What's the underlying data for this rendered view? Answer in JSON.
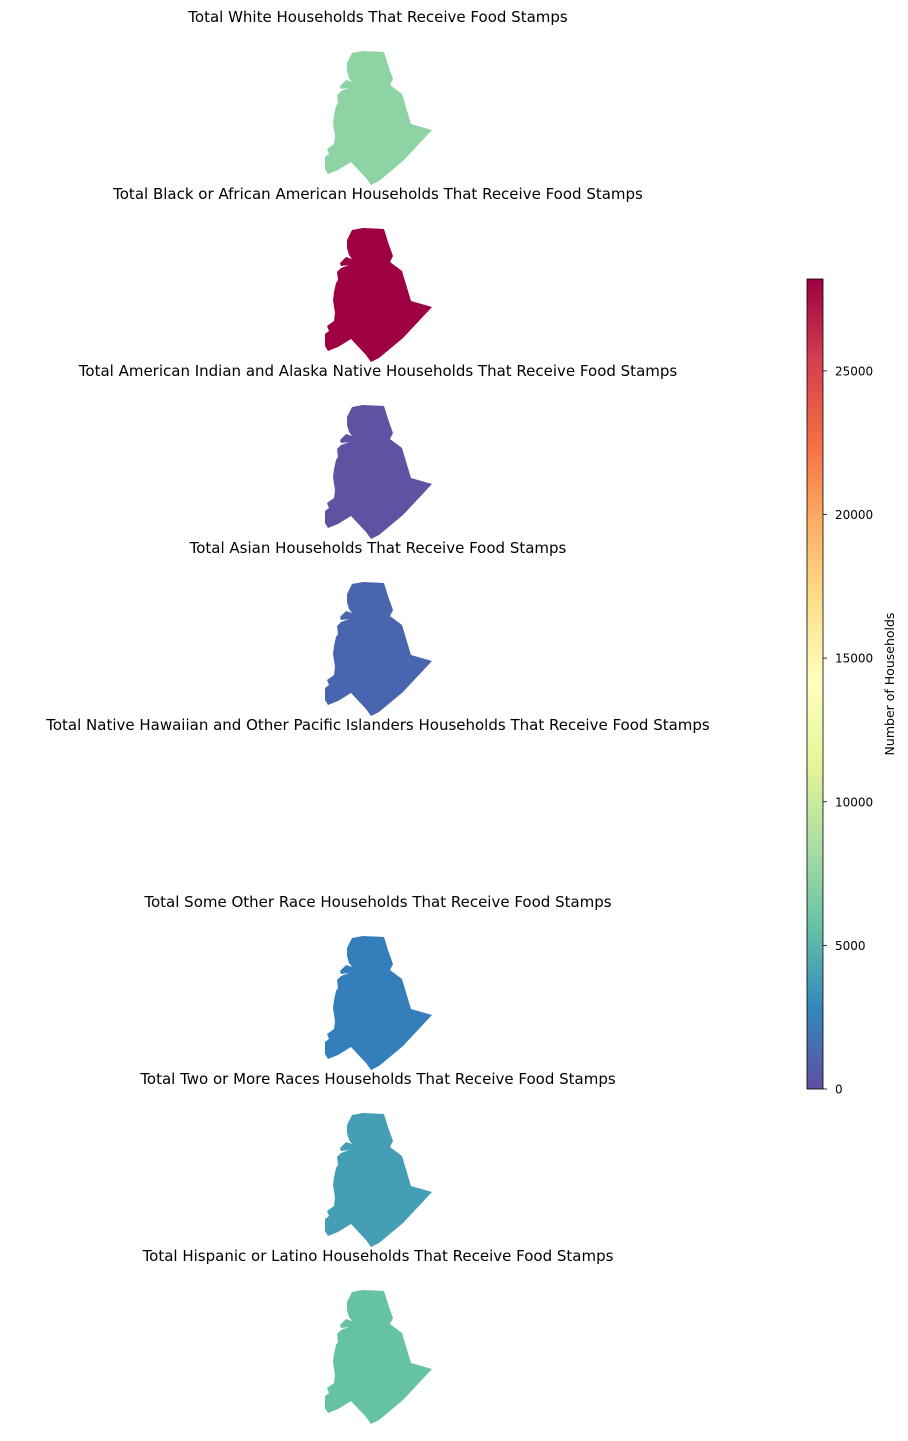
{
  "figure": {
    "colormap": "Spectral_r",
    "colorbar": {
      "label": "Number of Households",
      "min": 0,
      "max": 28200,
      "ticks": [
        0,
        5000,
        10000,
        15000,
        20000,
        25000
      ],
      "tick_labels": [
        "0",
        "5000",
        "10000",
        "15000",
        "20000",
        "25000"
      ],
      "color_stops": [
        "#5e4fa2",
        "#3288bd",
        "#66c2a5",
        "#abdda4",
        "#e6f598",
        "#ffffbf",
        "#fee08b",
        "#fdae61",
        "#f46d43",
        "#d53e4f",
        "#9e0142"
      ]
    }
  },
  "chart_data": {
    "type": "choropleth",
    "region_count": 1,
    "unit": "Number of Households",
    "panels": [
      {
        "title": "Total White Households That Receive Food Stamps",
        "value": 8500,
        "fill": "#8dd3a4",
        "shown": true
      },
      {
        "title": "Total Black or African American Households That Receive Food Stamps",
        "value": 28200,
        "fill": "#9e0142",
        "shown": true
      },
      {
        "title": "Total American Indian and Alaska Native Households That Receive Food Stamps",
        "value": 100,
        "fill": "#5f52a3",
        "shown": true
      },
      {
        "title": "Total Asian Households That Receive Food Stamps",
        "value": 900,
        "fill": "#4a65b0",
        "shown": true
      },
      {
        "title": "Total Native Hawaiian and Other Pacific Islanders Households That Receive Food Stamps",
        "value": null,
        "fill": "",
        "shown": false
      },
      {
        "title": "Total Some Other Race Households That Receive Food Stamps",
        "value": 2500,
        "fill": "#347fbb",
        "shown": true
      },
      {
        "title": "Total Two or More Races Households That Receive Food Stamps",
        "value": 4300,
        "fill": "#449fb6",
        "shown": true
      },
      {
        "title": "Total Hispanic or Latino Households That Receive Food Stamps",
        "value": 6700,
        "fill": "#66c2a5",
        "shown": true
      }
    ]
  }
}
